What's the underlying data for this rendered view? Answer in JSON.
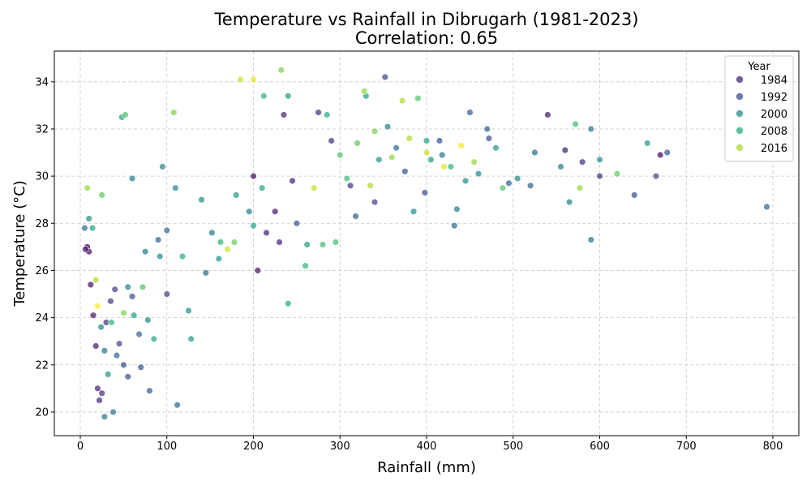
{
  "chart_data": {
    "type": "scatter",
    "title": "Temperature vs Rainfall in Dibrugarh (1981-2023)",
    "subtitle": "Correlation: 0.65",
    "xlabel": "Rainfall (mm)",
    "ylabel": "Temperature (°C)",
    "xlim": [
      -30,
      830
    ],
    "ylim": [
      19,
      35.3
    ],
    "xticks": [
      0,
      100,
      200,
      300,
      400,
      500,
      600,
      700,
      800
    ],
    "yticks": [
      20,
      22,
      24,
      26,
      28,
      30,
      32,
      34
    ],
    "grid": true,
    "grid_style": "dashed",
    "legend": {
      "title": "Year",
      "position": "top-right",
      "entries": [
        {
          "label": "1984",
          "color": "#472d7b"
        },
        {
          "label": "1992",
          "color": "#3b528b"
        },
        {
          "label": "2000",
          "color": "#21918c"
        },
        {
          "label": "2008",
          "color": "#27ad81"
        },
        {
          "label": "2016",
          "color": "#aadc32"
        }
      ]
    },
    "colormap": "viridis",
    "color_range": [
      1981,
      2023
    ],
    "points": [
      [
        8,
        27.0,
        1981
      ],
      [
        10,
        26.8,
        1982
      ],
      [
        12,
        25.4,
        1983
      ],
      [
        15,
        24.1,
        1984
      ],
      [
        18,
        22.8,
        1985
      ],
      [
        20,
        21.0,
        1986
      ],
      [
        22,
        20.5,
        1987
      ],
      [
        25,
        20.8,
        1988
      ],
      [
        30,
        23.8,
        1989
      ],
      [
        35,
        24.7,
        1990
      ],
      [
        40,
        25.2,
        1991
      ],
      [
        45,
        22.9,
        1992
      ],
      [
        50,
        22.0,
        1993
      ],
      [
        55,
        21.5,
        1994
      ],
      [
        60,
        24.9,
        1995
      ],
      [
        70,
        21.9,
        1996
      ],
      [
        80,
        20.9,
        1997
      ],
      [
        90,
        27.3,
        1998
      ],
      [
        100,
        27.7,
        1999
      ],
      [
        112,
        20.3,
        2000
      ],
      [
        38,
        20.0,
        2001
      ],
      [
        28,
        19.8,
        2002
      ],
      [
        60,
        29.9,
        2003
      ],
      [
        75,
        26.8,
        2004
      ],
      [
        95,
        30.4,
        2005
      ],
      [
        110,
        29.5,
        2006
      ],
      [
        125,
        24.3,
        2007
      ],
      [
        140,
        29.0,
        2008
      ],
      [
        160,
        26.5,
        2009
      ],
      [
        180,
        29.2,
        2010
      ],
      [
        200,
        27.9,
        2011
      ],
      [
        210,
        29.5,
        2012
      ],
      [
        240,
        24.6,
        2013
      ],
      [
        260,
        26.2,
        2014
      ],
      [
        280,
        27.1,
        2015
      ],
      [
        300,
        30.9,
        2016
      ],
      [
        320,
        31.4,
        2017
      ],
      [
        340,
        31.9,
        2018
      ],
      [
        360,
        30.8,
        2019
      ],
      [
        380,
        31.6,
        2020
      ],
      [
        400,
        31.0,
        2021
      ],
      [
        420,
        30.4,
        2022
      ],
      [
        440,
        31.3,
        2023
      ],
      [
        200,
        30.0,
        1983
      ],
      [
        225,
        28.5,
        1985
      ],
      [
        235,
        32.6,
        1986
      ],
      [
        245,
        29.8,
        1987
      ],
      [
        275,
        32.7,
        1988
      ],
      [
        290,
        31.5,
        1989
      ],
      [
        312,
        29.6,
        1990
      ],
      [
        340,
        28.9,
        1991
      ],
      [
        352,
        34.2,
        1992
      ],
      [
        375,
        30.2,
        1993
      ],
      [
        398,
        29.3,
        1994
      ],
      [
        415,
        31.5,
        1995
      ],
      [
        450,
        32.7,
        1996
      ],
      [
        470,
        32.0,
        1997
      ],
      [
        495,
        29.7,
        1998
      ],
      [
        520,
        29.6,
        1999
      ],
      [
        540,
        32.6,
        1985
      ],
      [
        560,
        31.1,
        1986
      ],
      [
        580,
        30.6,
        1988
      ],
      [
        600,
        30.0,
        1989
      ],
      [
        640,
        29.2,
        1994
      ],
      [
        665,
        30.0,
        1992
      ],
      [
        670,
        30.9,
        1983
      ],
      [
        678,
        31.0,
        1996
      ],
      [
        793,
        28.7,
        1998
      ],
      [
        590,
        27.3,
        2001
      ],
      [
        590,
        32.0,
        2002
      ],
      [
        565,
        28.9,
        2005
      ],
      [
        600,
        30.7,
        2007
      ],
      [
        655,
        31.4,
        2009
      ],
      [
        620,
        30.1,
        2017
      ],
      [
        577,
        29.5,
        2019
      ],
      [
        572,
        32.2,
        2015
      ],
      [
        555,
        30.4,
        2003
      ],
      [
        525,
        31.0,
        2000
      ],
      [
        505,
        29.9,
        2005
      ],
      [
        480,
        31.2,
        2010
      ],
      [
        460,
        30.1,
        2006
      ],
      [
        435,
        28.6,
        2003
      ],
      [
        432,
        27.9,
        1999
      ],
      [
        400,
        31.5,
        2012
      ],
      [
        390,
        33.3,
        2016
      ],
      [
        372,
        33.2,
        2020
      ],
      [
        355,
        32.1,
        2004
      ],
      [
        330,
        33.4,
        2011
      ],
      [
        328,
        33.6,
        2019
      ],
      [
        308,
        29.9,
        2015
      ],
      [
        285,
        32.6,
        2013
      ],
      [
        240,
        33.4,
        2010
      ],
      [
        232,
        34.5,
        2018
      ],
      [
        212,
        33.4,
        2014
      ],
      [
        185,
        34.1,
        2021
      ],
      [
        200,
        34.1,
        2022
      ],
      [
        108,
        32.7,
        2018
      ],
      [
        48,
        32.5,
        2012
      ],
      [
        52,
        32.6,
        2016
      ],
      [
        25,
        29.2,
        2017
      ],
      [
        8,
        29.5,
        2019
      ],
      [
        5,
        27.8,
        2000
      ],
      [
        6,
        26.9,
        1984
      ],
      [
        10,
        28.2,
        2008
      ],
      [
        14,
        27.8,
        2012
      ],
      [
        18,
        25.6,
        2020
      ],
      [
        20,
        24.5,
        2023
      ],
      [
        24,
        23.6,
        2006
      ],
      [
        28,
        22.6,
        2002
      ],
      [
        32,
        21.6,
        2009
      ],
      [
        36,
        23.8,
        2014
      ],
      [
        42,
        22.4,
        1999
      ],
      [
        50,
        24.2,
        2018
      ],
      [
        55,
        25.3,
        2004
      ],
      [
        62,
        24.1,
        2011
      ],
      [
        68,
        23.3,
        1998
      ],
      [
        72,
        25.3,
        2016
      ],
      [
        78,
        23.9,
        2005
      ],
      [
        85,
        23.1,
        2012
      ],
      [
        92,
        26.6,
        2007
      ],
      [
        100,
        25.0,
        1990
      ],
      [
        118,
        26.6,
        2013
      ],
      [
        128,
        23.1,
        2010
      ],
      [
        145,
        25.9,
        1999
      ],
      [
        152,
        27.6,
        2002
      ],
      [
        162,
        27.2,
        2014
      ],
      [
        170,
        26.9,
        2021
      ],
      [
        178,
        27.2,
        2017
      ],
      [
        195,
        28.5,
        2003
      ],
      [
        205,
        26.0,
        1983
      ],
      [
        215,
        27.6,
        1987
      ],
      [
        230,
        27.2,
        1986
      ],
      [
        250,
        28.0,
        1995
      ],
      [
        262,
        27.1,
        2011
      ],
      [
        270,
        29.5,
        2021
      ],
      [
        295,
        27.2,
        2015
      ],
      [
        318,
        28.3,
        1997
      ],
      [
        335,
        29.6,
        2020
      ],
      [
        345,
        30.7,
        2009
      ],
      [
        365,
        31.2,
        2000
      ],
      [
        385,
        28.5,
        2006
      ],
      [
        405,
        30.7,
        2011
      ],
      [
        418,
        30.9,
        2001
      ],
      [
        428,
        30.4,
        2014
      ],
      [
        445,
        29.8,
        2008
      ],
      [
        455,
        30.6,
        2019
      ],
      [
        472,
        31.6,
        1994
      ],
      [
        488,
        29.5,
        2016
      ]
    ]
  }
}
